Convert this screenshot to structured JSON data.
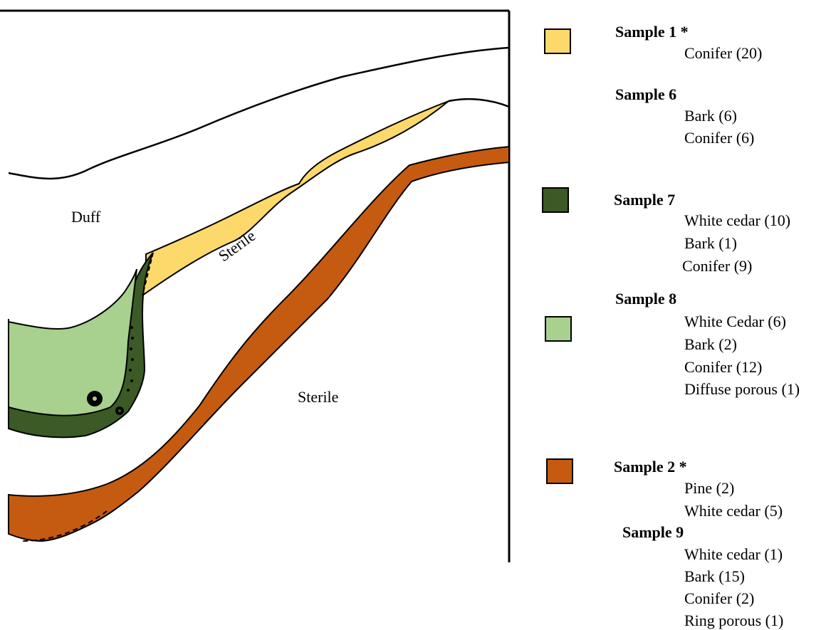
{
  "labels": {
    "duff": "Duff",
    "sterile_upper": "Sterile",
    "sterile_lower": "Sterile"
  },
  "colors": {
    "yellow": "#fdd86b",
    "dark_green": "#3b5a25",
    "light_green": "#a8d08e",
    "orange": "#c55a11",
    "outline": "#000000"
  },
  "legend": [
    {
      "swatch_color": "#fdd86b",
      "groups": [
        {
          "title": "Sample 1 *",
          "entries": [
            "Conifer (20)"
          ]
        },
        {
          "title": "Sample 6",
          "entries": [
            "Bark (6)",
            "Conifer (6)"
          ]
        }
      ]
    },
    {
      "swatch_color": "#3b5a25",
      "groups": [
        {
          "title": "Sample 7",
          "entries": [
            "White cedar (10)",
            "Bark (1)",
            "Conifer (9)"
          ]
        }
      ]
    },
    {
      "swatch_color": "#a8d08e",
      "groups": [
        {
          "title": "Sample 8",
          "entries": [
            "White Cedar (6)",
            "Bark (2)",
            "Conifer (12)",
            "Diffuse porous (1)"
          ]
        }
      ]
    },
    {
      "swatch_color": "#c55a11",
      "groups": [
        {
          "title": "Sample 2 *",
          "entries": [
            "Pine (2)",
            "White cedar (5)"
          ]
        },
        {
          "title": "Sample 9",
          "entries": [
            "White cedar (1)",
            "Bark (15)",
            "Conifer (2)",
            "Ring porous (1)"
          ]
        }
      ]
    }
  ]
}
